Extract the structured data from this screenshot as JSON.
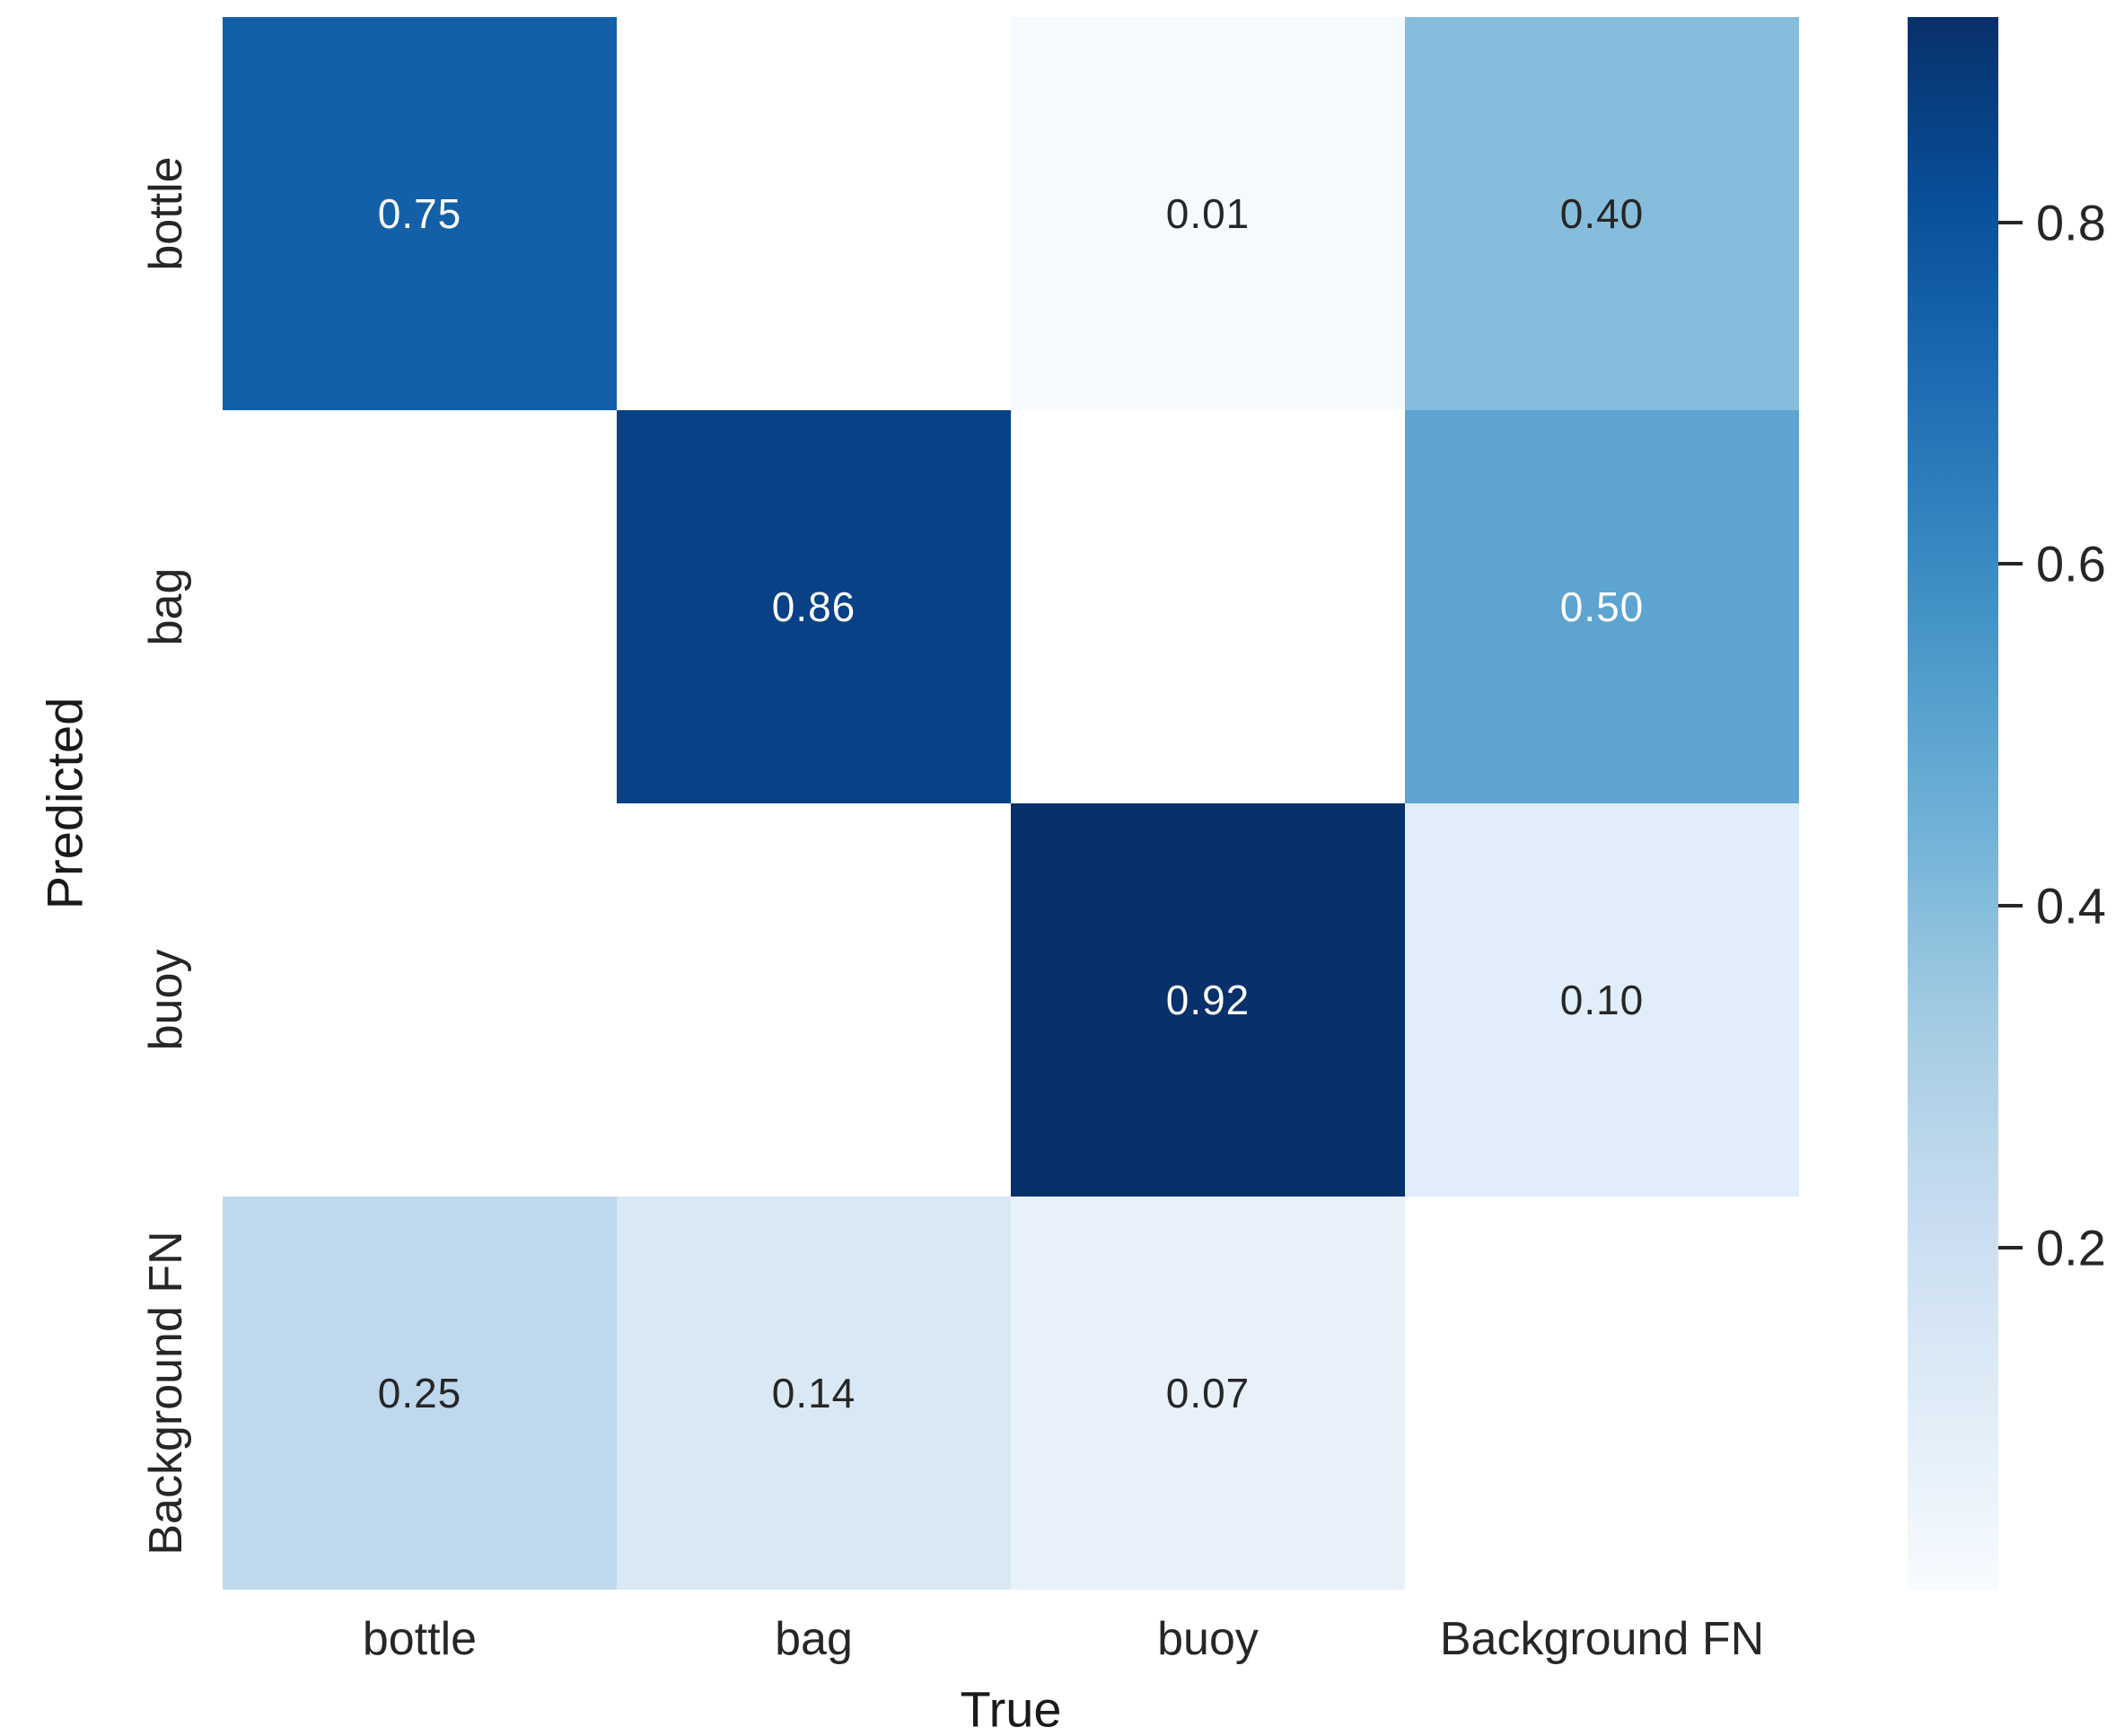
{
  "figure": {
    "background_color": "#ffffff",
    "text_color": "#262626"
  },
  "chart_data": {
    "type": "heatmap",
    "title": "",
    "xlabel": "True",
    "ylabel": "Predicted",
    "columns": [
      "bottle",
      "bag",
      "buoy",
      "Background FN"
    ],
    "rows": [
      "bottle",
      "bag",
      "buoy",
      "Background FN"
    ],
    "matrix": [
      [
        0.75,
        null,
        0.01,
        0.4
      ],
      [
        null,
        0.86,
        null,
        0.5
      ],
      [
        null,
        null,
        0.92,
        0.1
      ],
      [
        0.25,
        0.14,
        0.07,
        null
      ]
    ],
    "cell_labels": [
      [
        "0.75",
        "",
        "0.01",
        "0.40"
      ],
      [
        "",
        "0.86",
        "",
        "0.50"
      ],
      [
        "",
        "",
        "0.92",
        "0.10"
      ],
      [
        "0.25",
        "0.14",
        "0.07",
        ""
      ]
    ],
    "colormap": "Blues",
    "vmin": 0.0,
    "vmax": 0.92,
    "empty_cell_color": "#ffffff",
    "annotation_color_dark": "#262626",
    "annotation_color_light": "#ffffff",
    "grid": false,
    "legend_position": "right-colorbar",
    "colorbar": {
      "ticks": [
        {
          "label": "0.8",
          "value": 0.8
        },
        {
          "label": "0.6",
          "value": 0.6
        },
        {
          "label": "0.4",
          "value": 0.4
        },
        {
          "label": "0.2",
          "value": 0.2
        }
      ]
    }
  }
}
